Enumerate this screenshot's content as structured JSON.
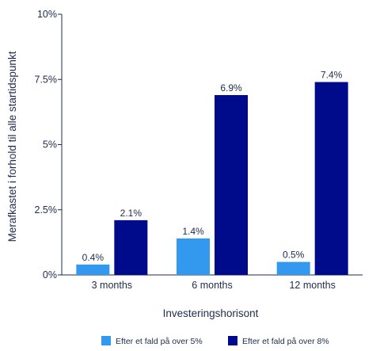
{
  "chart_data": {
    "type": "bar",
    "title": "",
    "xlabel": "Investeringshorisont",
    "ylabel": "Merafkastet i forhold til alle startidspunkt",
    "categories": [
      "3 months",
      "6 months",
      "12 months"
    ],
    "ylim": [
      0,
      10
    ],
    "yticks": [
      0,
      2.5,
      5,
      7.5,
      10
    ],
    "ytick_labels": [
      "0%",
      "2.5%",
      "5%",
      "7.5%",
      "10%"
    ],
    "grid": false,
    "legend_position": "bottom",
    "series": [
      {
        "name": "Efter et fald på over 5%",
        "color": "#3399ee",
        "values": [
          0.4,
          1.4,
          0.5
        ],
        "labels": [
          "0.4%",
          "1.4%",
          "0.5%"
        ]
      },
      {
        "name": "Efter et fald på over 8%",
        "color": "#000b8c",
        "values": [
          2.1,
          6.9,
          7.4
        ],
        "labels": [
          "2.1%",
          "6.9%",
          "7.4%"
        ]
      }
    ]
  }
}
